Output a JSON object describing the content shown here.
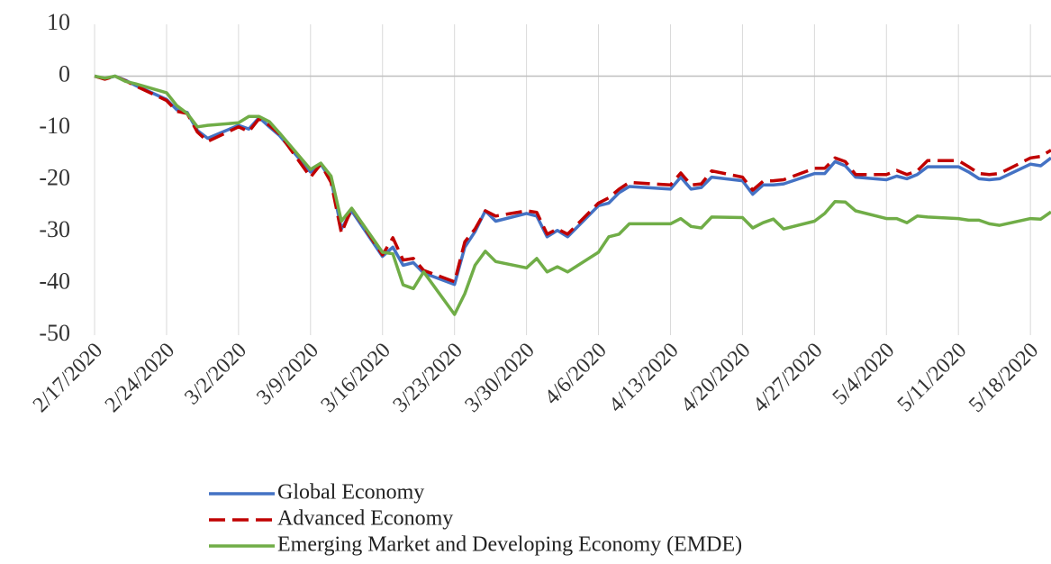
{
  "chart_data": {
    "type": "line",
    "x": [
      "2/17/2020",
      "2/18/2020",
      "2/19/2020",
      "2/20/2020",
      "2/21/2020",
      "2/24/2020",
      "2/25/2020",
      "2/26/2020",
      "2/27/2020",
      "2/28/2020",
      "3/2/2020",
      "3/3/2020",
      "3/4/2020",
      "3/5/2020",
      "3/6/2020",
      "3/9/2020",
      "3/10/2020",
      "3/11/2020",
      "3/12/2020",
      "3/13/2020",
      "3/16/2020",
      "3/17/2020",
      "3/18/2020",
      "3/19/2020",
      "3/20/2020",
      "3/23/2020",
      "3/24/2020",
      "3/25/2020",
      "3/26/2020",
      "3/27/2020",
      "3/30/2020",
      "3/31/2020",
      "4/1/2020",
      "4/2/2020",
      "4/3/2020",
      "4/6/2020",
      "4/7/2020",
      "4/8/2020",
      "4/9/2020",
      "4/13/2020",
      "4/14/2020",
      "4/15/2020",
      "4/16/2020",
      "4/17/2020",
      "4/20/2020",
      "4/21/2020",
      "4/22/2020",
      "4/23/2020",
      "4/24/2020",
      "4/27/2020",
      "4/28/2020",
      "4/29/2020",
      "4/30/2020",
      "5/1/2020",
      "5/4/2020",
      "5/5/2020",
      "5/6/2020",
      "5/7/2020",
      "5/8/2020",
      "5/11/2020",
      "5/12/2020",
      "5/13/2020",
      "5/14/2020",
      "5/15/2020",
      "5/18/2020",
      "5/19/2020",
      "5/20/2020"
    ],
    "series": [
      {
        "name": "Global Economy",
        "color": "#4472c4",
        "dash": false,
        "values": [
          0,
          -0.5,
          0,
          -0.8,
          -1.8,
          -4.5,
          -6.5,
          -7,
          -10.5,
          -12,
          -9.5,
          -10.2,
          -8,
          -9.8,
          -11.5,
          -18.5,
          -17,
          -20,
          -29.5,
          -26,
          -34.8,
          -33,
          -36.5,
          -36,
          -38,
          -40.2,
          -33,
          -30,
          -26,
          -28,
          -26.5,
          -27,
          -31,
          -29.8,
          -31,
          -25,
          -24.5,
          -22.5,
          -21.3,
          -21.8,
          -19.5,
          -21.8,
          -21.5,
          -19.5,
          -20.2,
          -22.8,
          -21,
          -21,
          -20.8,
          -18.8,
          -18.8,
          -16.5,
          -17.3,
          -19.5,
          -20,
          -19.3,
          -19.8,
          -19,
          -17.5,
          -17.5,
          -18.5,
          -19.8,
          -20,
          -19.8,
          -17,
          -17.3,
          -15.8
        ]
      },
      {
        "name": "Advanced Economy",
        "color": "#c00000",
        "dash": true,
        "values": [
          0,
          -0.6,
          0,
          -0.9,
          -1.9,
          -4.7,
          -6.8,
          -7.2,
          -10.8,
          -12.6,
          -9.8,
          -10.7,
          -8.2,
          -9.5,
          -11.2,
          -19.5,
          -17,
          -20.5,
          -30.3,
          -25.5,
          -34.5,
          -31.2,
          -35.5,
          -35.2,
          -37.5,
          -39.7,
          -32,
          -29.5,
          -26,
          -27,
          -26,
          -26.3,
          -30.5,
          -29.5,
          -30.5,
          -24.5,
          -23.5,
          -21.8,
          -20.5,
          -21,
          -18.7,
          -21,
          -20.8,
          -18.3,
          -19.5,
          -22,
          -20.3,
          -20.2,
          -20,
          -17.8,
          -17.8,
          -15.8,
          -16.5,
          -19,
          -19,
          -18.2,
          -19,
          -18.3,
          -16.3,
          -16.3,
          -17.5,
          -18.8,
          -19,
          -18.8,
          -15.8,
          -15.5,
          -14.3
        ]
      },
      {
        "name": "Emerging Market and Developing Economy (EMDE)",
        "color": "#70ad47",
        "dash": false,
        "values": [
          0,
          -0.4,
          0,
          -1,
          -1.5,
          -3.2,
          -5.7,
          -7.2,
          -9.8,
          -9.5,
          -9,
          -7.8,
          -7.8,
          -8.8,
          -11,
          -18,
          -16.8,
          -19.3,
          -28,
          -25.5,
          -34,
          -34.3,
          -40.3,
          -41,
          -37.8,
          -46,
          -42,
          -36.5,
          -33.8,
          -35.8,
          -37,
          -35.2,
          -37.8,
          -36.8,
          -37.8,
          -34,
          -31,
          -30.5,
          -28.5,
          -28.5,
          -27.5,
          -29,
          -29.3,
          -27.2,
          -27.3,
          -29.3,
          -28.3,
          -27.6,
          -29.5,
          -28,
          -26.5,
          -24.2,
          -24.3,
          -26,
          -27.5,
          -27.5,
          -28.3,
          -27,
          -27.2,
          -27.5,
          -27.8,
          -27.8,
          -28.5,
          -28.8,
          -27.5,
          -27.6,
          -26.2
        ]
      }
    ],
    "xlim": [
      "2/17/2020",
      "5/20/2020"
    ],
    "xticks": [
      "2/17/2020",
      "2/24/2020",
      "3/2/2020",
      "3/9/2020",
      "3/16/2020",
      "3/23/2020",
      "3/30/2020",
      "4/6/2020",
      "4/13/2020",
      "4/20/2020",
      "4/27/2020",
      "5/4/2020",
      "5/11/2020",
      "5/18/2020"
    ],
    "ylim": [
      -50,
      10
    ],
    "yticks": [
      -50,
      -40,
      -30,
      -20,
      -10,
      0,
      10
    ],
    "grid": true
  }
}
